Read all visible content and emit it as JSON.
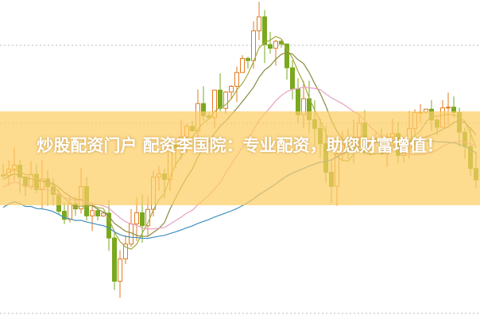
{
  "banner": {
    "title": "炒股配资门户 配资李国院：专业配资，助您财富增值！",
    "background": "#fcd97f"
  },
  "colors": {
    "up_candle": "#e07b1f",
    "down_candle": "#7aa81e",
    "ma_short": "#a7a83a",
    "ma_mid": "#e7a0c0",
    "ma_long": "#3f8fbf",
    "ma_dark": "#8a8a40"
  }
}
